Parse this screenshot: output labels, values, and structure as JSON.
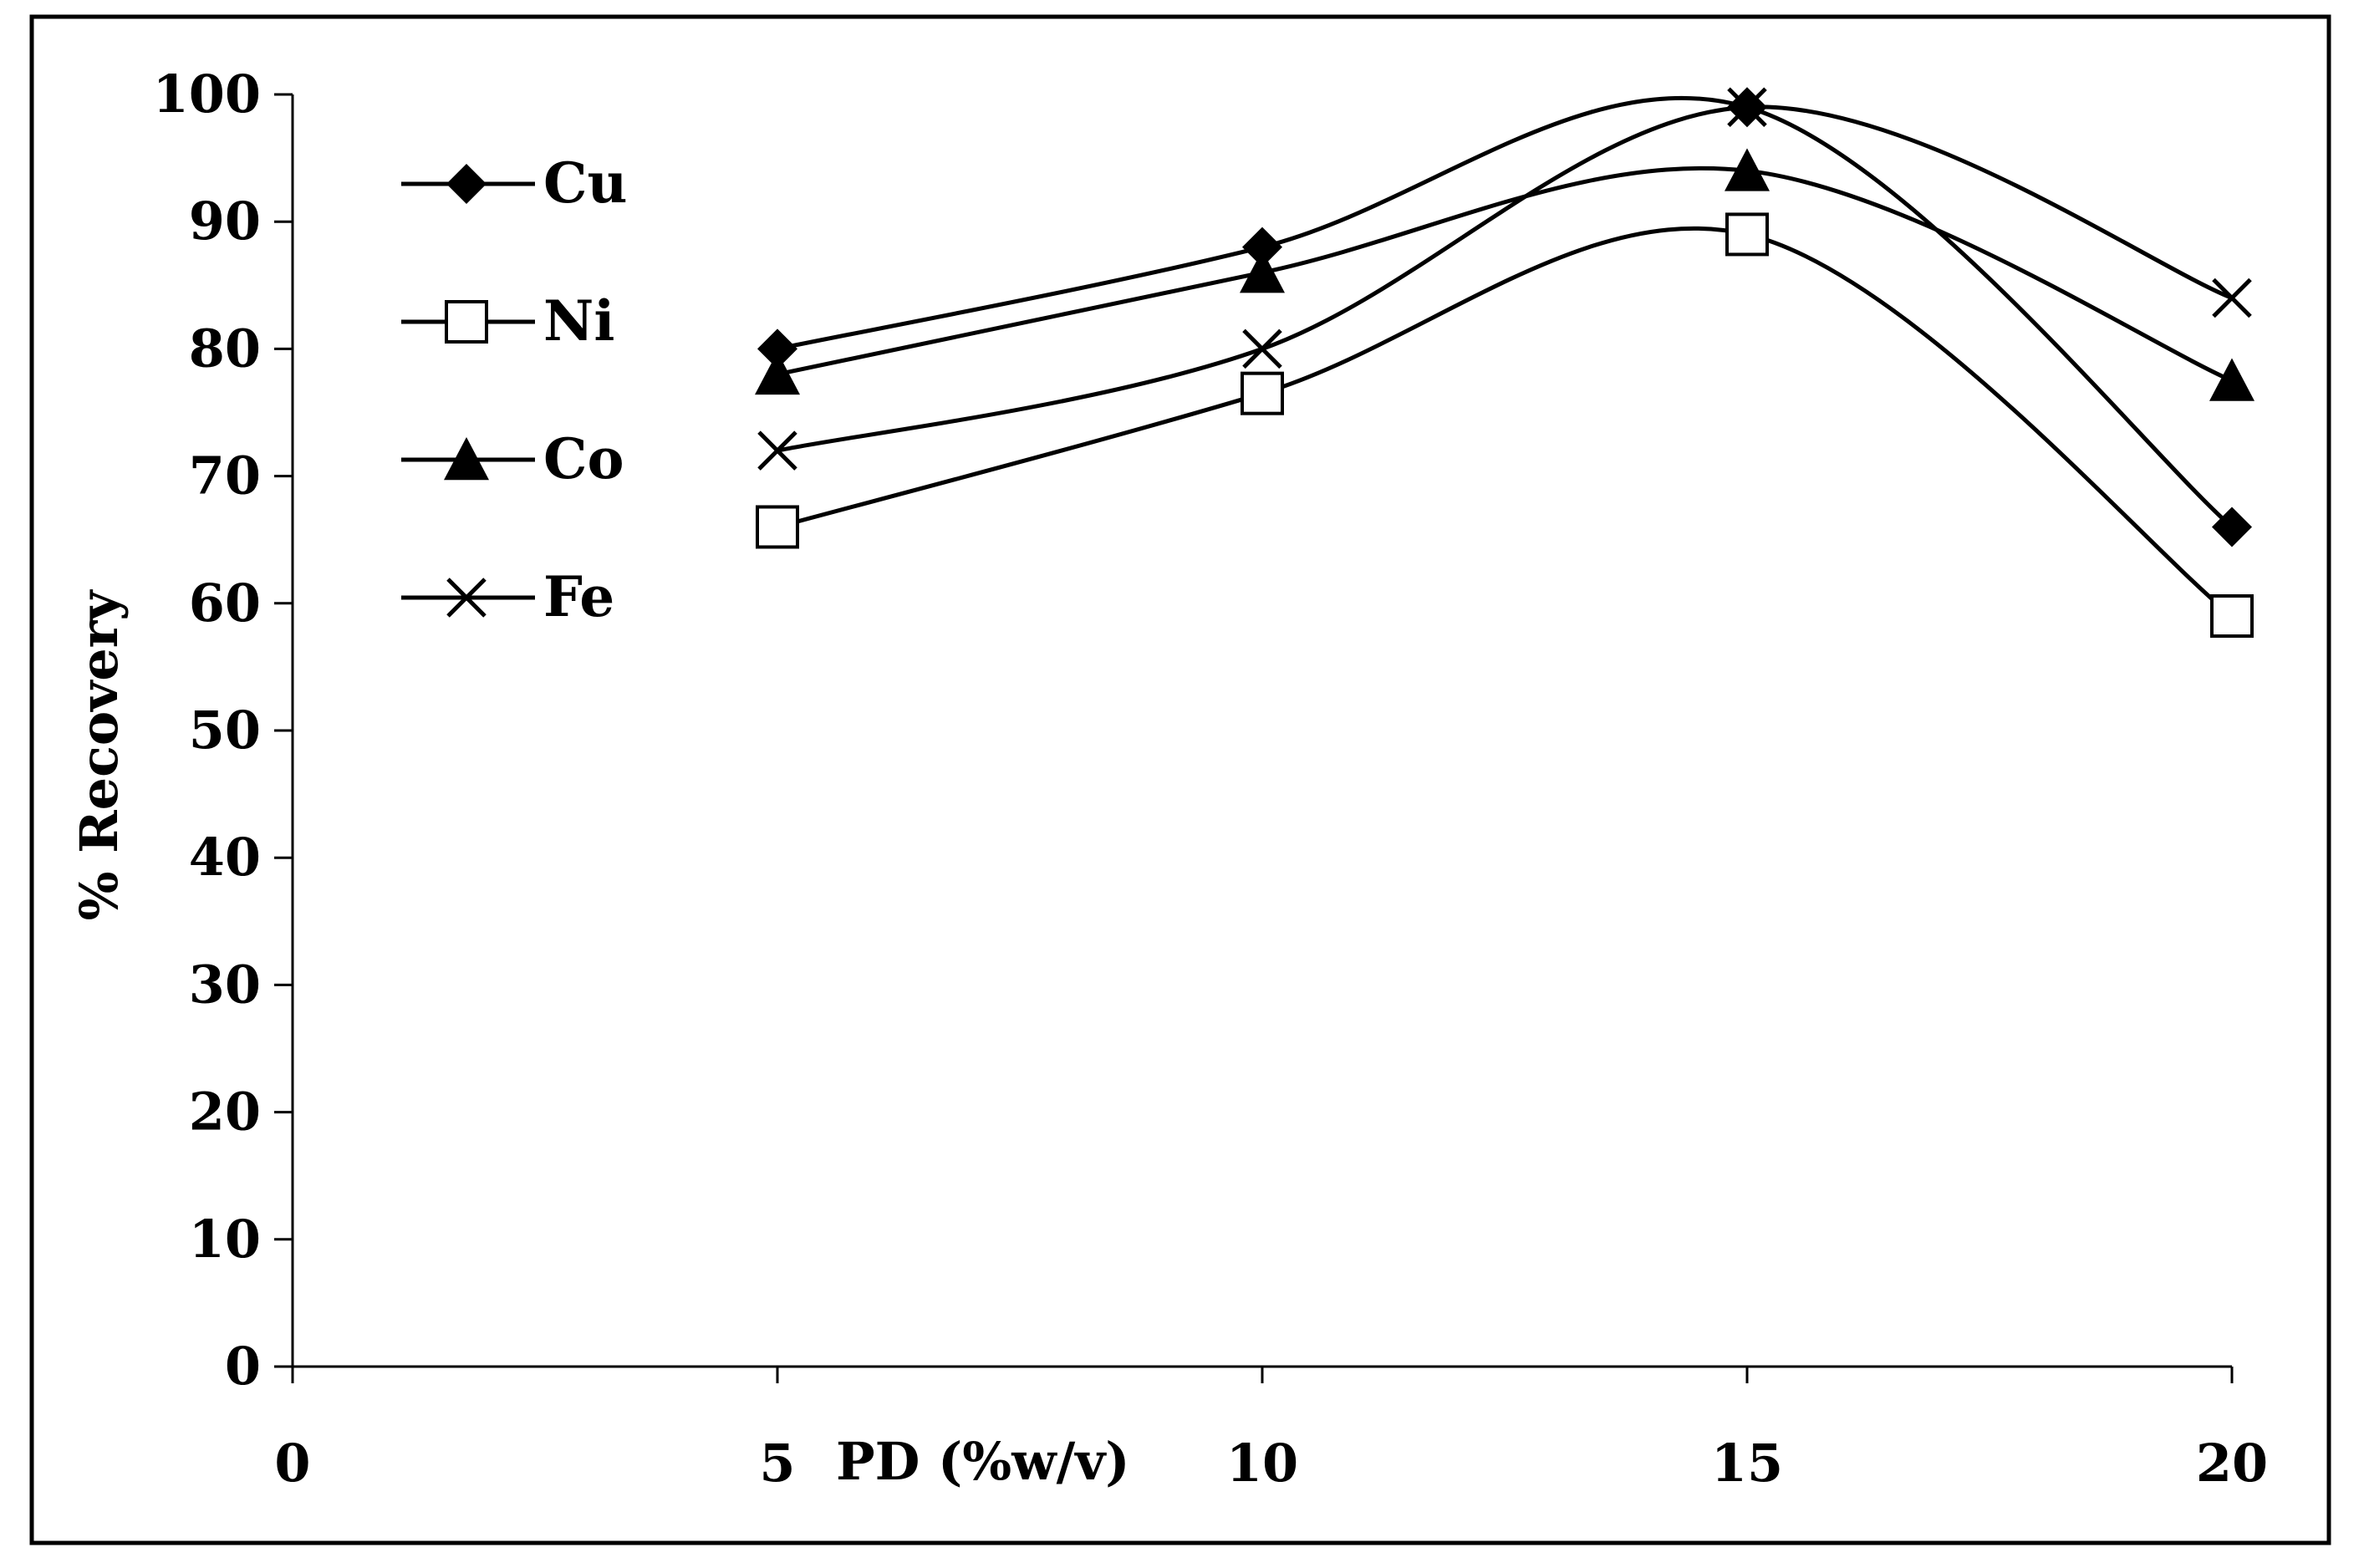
{
  "chart_data": {
    "type": "line",
    "smooth": true,
    "title": "",
    "xlabel": "PD (%w/v)",
    "ylabel": "% Recovery",
    "xlim": [
      0,
      20
    ],
    "ylim": [
      0,
      100
    ],
    "x_ticks": [
      0,
      5,
      10,
      15,
      20
    ],
    "y_ticks": [
      0,
      10,
      20,
      30,
      40,
      50,
      60,
      70,
      80,
      90,
      100
    ],
    "grid": false,
    "legend_position": "top-left",
    "x": [
      5,
      10,
      15,
      20
    ],
    "series": [
      {
        "name": "Cu",
        "marker": "diamond",
        "values": [
          80,
          88,
          99,
          66
        ]
      },
      {
        "name": "Ni",
        "marker": "square-open",
        "values": [
          66,
          76.5,
          89,
          59
        ]
      },
      {
        "name": "Co",
        "marker": "triangle",
        "values": [
          78,
          86,
          94,
          77.5
        ]
      },
      {
        "name": "Fe",
        "marker": "x",
        "values": [
          72,
          80,
          99,
          84
        ]
      }
    ]
  }
}
